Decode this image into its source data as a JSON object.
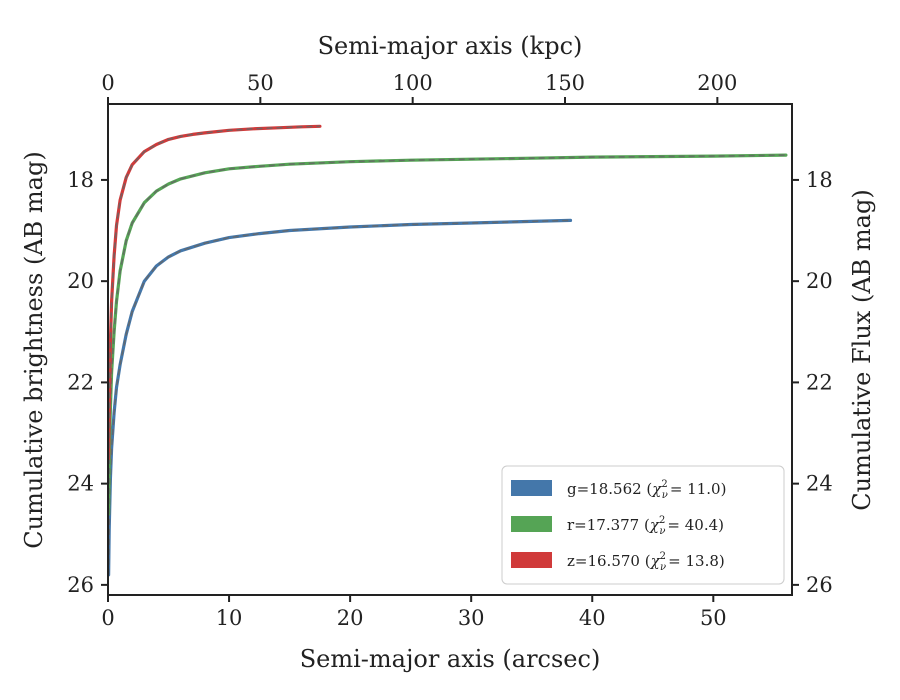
{
  "chart_data": {
    "type": "line",
    "xlabel": "Semi-major axis (arcsec)",
    "x2label": "Semi-major axis (kpc)",
    "ylabel": "Cumulative brightness (AB mag)",
    "y2label": "Cumulative Flux (AB mag)",
    "xlim": [
      0,
      56.5
    ],
    "x2lim": [
      0,
      224.5
    ],
    "ylim": [
      26.2,
      16.5
    ],
    "y_inverted": true,
    "xticks": [
      0,
      10,
      20,
      30,
      40,
      50
    ],
    "x2ticks": [
      0,
      50,
      100,
      150,
      200
    ],
    "yticks": [
      18,
      20,
      22,
      24,
      26
    ],
    "grid": false,
    "legend_position": "lower-right",
    "series": [
      {
        "name": "g",
        "legend_value": "=18.562",
        "chi2": "= 11.0",
        "color": "#4477aa",
        "x": [
          0.05,
          0.1,
          0.2,
          0.3,
          0.5,
          0.7,
          1.0,
          1.5,
          2.0,
          3.0,
          4.0,
          5.0,
          6.0,
          8.0,
          10.0,
          12.5,
          15.0,
          20.0,
          25.0,
          30.0,
          35.0,
          38.2
        ],
        "y": [
          25.8,
          24.9,
          23.9,
          23.3,
          22.6,
          22.1,
          21.65,
          21.05,
          20.6,
          20.0,
          19.7,
          19.52,
          19.4,
          19.25,
          19.14,
          19.06,
          19.0,
          18.93,
          18.88,
          18.85,
          18.82,
          18.8
        ]
      },
      {
        "name": "r",
        "legend_value": "=17.377",
        "chi2": "= 40.4",
        "color": "#55a455",
        "x": [
          0.05,
          0.1,
          0.2,
          0.3,
          0.5,
          0.7,
          1.0,
          1.5,
          2.0,
          3.0,
          4.0,
          5.0,
          6.0,
          8.0,
          10.0,
          12.5,
          15.0,
          20.0,
          25.0,
          30.0,
          35.0,
          40.0,
          45.0,
          50.0,
          56.0
        ],
        "y": [
          24.6,
          23.5,
          22.5,
          21.8,
          21.0,
          20.4,
          19.8,
          19.2,
          18.85,
          18.45,
          18.22,
          18.08,
          17.98,
          17.86,
          17.78,
          17.73,
          17.69,
          17.64,
          17.61,
          17.59,
          17.57,
          17.55,
          17.54,
          17.53,
          17.51
        ]
      },
      {
        "name": "z",
        "legend_value": "=16.570",
        "chi2": "= 13.8",
        "color": "#d03a3a",
        "x": [
          0.05,
          0.1,
          0.2,
          0.3,
          0.5,
          0.7,
          1.0,
          1.5,
          2.0,
          3.0,
          4.0,
          5.0,
          6.0,
          7.0,
          8.0,
          10.0,
          12.0,
          14.0,
          16.0,
          17.5
        ],
        "y": [
          23.5,
          22.5,
          21.2,
          20.4,
          19.5,
          18.9,
          18.4,
          17.95,
          17.7,
          17.44,
          17.3,
          17.2,
          17.14,
          17.1,
          17.07,
          17.02,
          16.99,
          16.97,
          16.95,
          16.94
        ]
      }
    ]
  }
}
